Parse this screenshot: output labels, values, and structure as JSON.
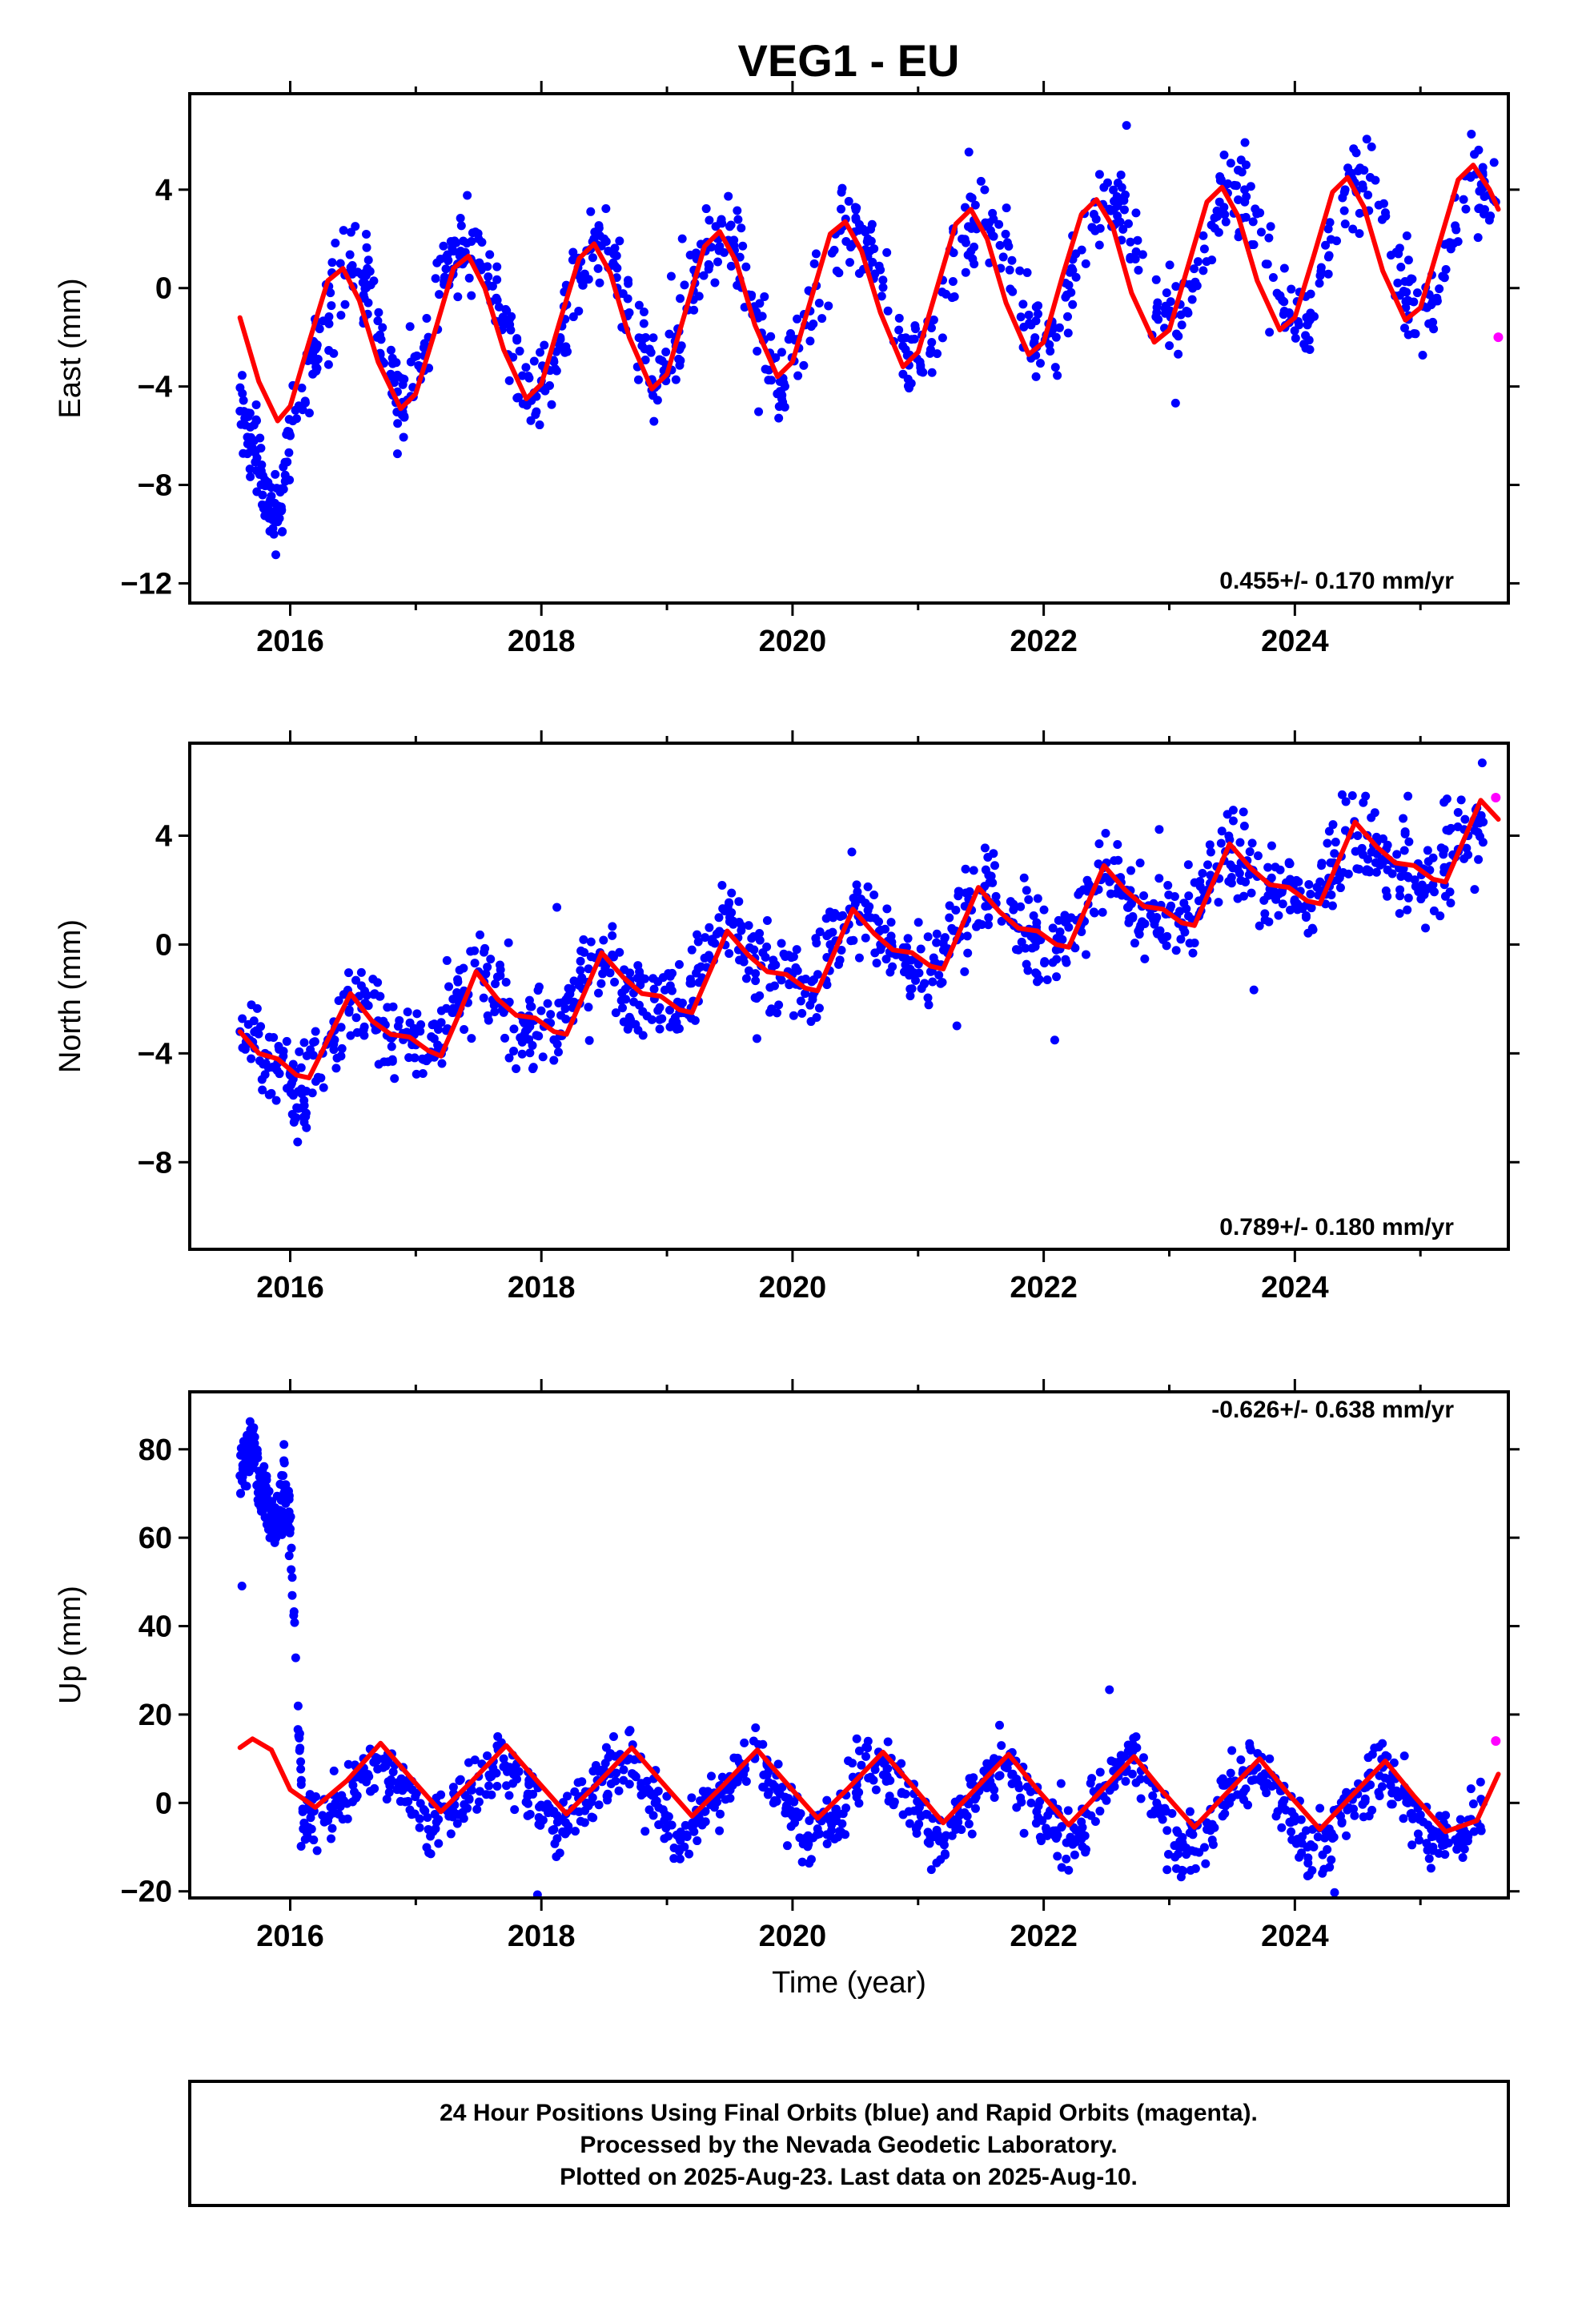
{
  "title": "VEG1 - EU",
  "footer": {
    "line1": "24 Hour Positions Using Final Orbits (blue) and Rapid Orbits (magenta).",
    "line2": "Processed by the Nevada Geodetic Laboratory.",
    "line3": "Plotted on 2025-Aug-23. Last data on 2025-Aug-10."
  },
  "colors": {
    "final": "#0000ff",
    "rapid": "#ff00ff",
    "model": "#ff0000",
    "frame": "#000000"
  },
  "chart_data": [
    {
      "type": "scatter",
      "ylabel": "East (mm)",
      "xlabel": "",
      "rate": "0.455+/- 0.170 mm/yr",
      "xlim": [
        2015.2,
        2025.7
      ],
      "ylim": [
        -12.8,
        7.9
      ],
      "yticks": [
        4,
        0,
        -4,
        -8,
        -12
      ],
      "ytick_labels": [
        "4",
        "0",
        "−4",
        "−8",
        "−12"
      ],
      "xticks": [
        2016,
        2018,
        2020,
        2022,
        2024
      ],
      "xtick_labels": [
        "2016",
        "2018",
        "2020",
        "2022",
        "2024"
      ],
      "grid": false,
      "final_series": {
        "name": "Final Orbits",
        "x": [
          2015.6,
          2015.7,
          2015.8,
          2015.9,
          2016.0,
          2016.2,
          2016.4,
          2016.6,
          2016.8,
          2016.9,
          2017.1,
          2017.3,
          2017.5,
          2017.7,
          2017.9,
          2018.1,
          2018.3,
          2018.5,
          2018.7,
          2018.9,
          2019.1,
          2019.3,
          2019.5,
          2019.7,
          2019.9,
          2020.1,
          2020.4,
          2020.6,
          2020.9,
          2021.1,
          2021.4,
          2021.6,
          2021.9,
          2022.1,
          2022.4,
          2022.6,
          2022.9,
          2023.1,
          2023.4,
          2023.6,
          2023.9,
          2024.1,
          2024.4,
          2024.6,
          2024.9,
          2025.1,
          2025.4,
          2025.6
        ],
        "y": [
          -5.0,
          -6.5,
          -7.8,
          -9.5,
          -6.0,
          -2.5,
          1.0,
          0.5,
          -3.5,
          -4.8,
          -2.0,
          1.5,
          2.0,
          -1.5,
          -4.5,
          -3.0,
          0.5,
          2.0,
          -1.0,
          -4.0,
          -2.5,
          1.5,
          2.5,
          -1.0,
          -4.2,
          -1.5,
          2.5,
          2.0,
          -2.5,
          -2.5,
          2.5,
          2.8,
          -1.5,
          -2.0,
          3.0,
          3.5,
          -1.0,
          -1.5,
          3.5,
          4.0,
          -0.5,
          -1.5,
          4.0,
          4.5,
          -0.5,
          -0.5,
          4.5,
          3.5
        ]
      },
      "rapid_series": {
        "name": "Rapid Orbits",
        "x": [
          2025.62
        ],
        "y": [
          -2.0
        ]
      },
      "model": {
        "x": [
          2015.6,
          2015.75,
          2015.9,
          2016.0,
          2016.15,
          2016.3,
          2016.42,
          2016.55,
          2016.7,
          2016.88,
          2017.0,
          2017.15,
          2017.3,
          2017.42,
          2017.55,
          2017.7,
          2017.88,
          2018.0,
          2018.15,
          2018.3,
          2018.42,
          2018.55,
          2018.7,
          2018.88,
          2019.0,
          2019.15,
          2019.3,
          2019.42,
          2019.55,
          2019.7,
          2019.88,
          2020.0,
          2020.15,
          2020.3,
          2020.42,
          2020.55,
          2020.7,
          2020.88,
          2021.0,
          2021.15,
          2021.3,
          2021.42,
          2021.55,
          2021.7,
          2021.88,
          2022.0,
          2022.15,
          2022.3,
          2022.42,
          2022.55,
          2022.7,
          2022.88,
          2023.0,
          2023.15,
          2023.3,
          2023.42,
          2023.55,
          2023.7,
          2023.88,
          2024.0,
          2024.15,
          2024.3,
          2024.42,
          2024.55,
          2024.7,
          2024.88,
          2025.0,
          2025.15,
          2025.3,
          2025.42,
          2025.55,
          2025.62
        ],
        "y": [
          -1.2,
          -3.8,
          -5.4,
          -4.8,
          -2.2,
          0.3,
          0.8,
          -0.5,
          -3.0,
          -4.9,
          -4.3,
          -1.8,
          0.8,
          1.3,
          0.0,
          -2.5,
          -4.5,
          -3.9,
          -1.3,
          1.2,
          1.8,
          0.6,
          -2.0,
          -4.1,
          -3.5,
          -0.9,
          1.7,
          2.3,
          1.1,
          -1.5,
          -3.6,
          -3.0,
          -0.4,
          2.2,
          2.7,
          1.5,
          -1.0,
          -3.2,
          -2.6,
          0.0,
          2.6,
          3.2,
          2.0,
          -0.6,
          -2.7,
          -2.2,
          0.5,
          3.0,
          3.6,
          2.5,
          -0.2,
          -2.2,
          -1.7,
          0.9,
          3.5,
          4.1,
          2.9,
          0.3,
          -1.7,
          -1.2,
          1.3,
          3.9,
          4.5,
          3.3,
          0.7,
          -1.3,
          -0.8,
          1.8,
          4.4,
          5.0,
          4.0,
          3.2
        ]
      }
    },
    {
      "type": "scatter",
      "ylabel": "North (mm)",
      "xlabel": "",
      "rate": "0.789+/- 0.180 mm/yr",
      "xlim": [
        2015.2,
        2025.7
      ],
      "ylim": [
        -11.2,
        7.4
      ],
      "yticks": [
        4,
        0,
        -4,
        -8
      ],
      "ytick_labels": [
        "4",
        "0",
        "−4",
        "−8"
      ],
      "xticks": [
        2016,
        2018,
        2020,
        2022,
        2024
      ],
      "xtick_labels": [
        "2016",
        "2018",
        "2020",
        "2022",
        "2024"
      ],
      "grid": false,
      "final_series": {
        "name": "Final Orbits",
        "x": [
          2015.6,
          2015.8,
          2016.0,
          2016.1,
          2016.3,
          2016.5,
          2016.7,
          2016.9,
          2017.1,
          2017.3,
          2017.5,
          2017.7,
          2017.9,
          2018.1,
          2018.3,
          2018.5,
          2018.7,
          2018.9,
          2019.1,
          2019.3,
          2019.5,
          2019.7,
          2019.9,
          2020.1,
          2020.3,
          2020.5,
          2020.7,
          2020.9,
          2021.1,
          2021.3,
          2021.5,
          2021.7,
          2021.9,
          2022.1,
          2022.3,
          2022.5,
          2022.7,
          2022.9,
          2023.1,
          2023.3,
          2023.5,
          2023.7,
          2023.9,
          2024.1,
          2024.3,
          2024.5,
          2024.7,
          2024.9,
          2025.1,
          2025.3,
          2025.5
        ],
        "y": [
          -3.2,
          -4.0,
          -4.8,
          -6.0,
          -3.5,
          -2.0,
          -2.8,
          -3.5,
          -4.2,
          -2.5,
          -1.0,
          -2.5,
          -3.0,
          -3.5,
          -1.5,
          -0.5,
          -1.5,
          -2.0,
          -2.5,
          -0.5,
          1.0,
          -0.5,
          -1.2,
          -1.8,
          0.0,
          1.5,
          0.0,
          -0.5,
          -1.0,
          0.5,
          2.0,
          1.0,
          0.3,
          -0.2,
          1.0,
          3.0,
          1.5,
          1.0,
          0.8,
          2.0,
          3.5,
          2.5,
          2.0,
          1.5,
          3.0,
          4.0,
          3.0,
          2.5,
          2.2,
          3.5,
          4.5
        ]
      },
      "rapid_series": {
        "name": "Rapid Orbits",
        "x": [
          2025.6
        ],
        "y": [
          5.4
        ]
      },
      "model": {
        "x": [
          2015.6,
          2015.75,
          2015.9,
          2016.05,
          2016.15,
          2016.3,
          2016.48,
          2016.65,
          2016.8,
          2016.95,
          2017.1,
          2017.2,
          2017.35,
          2017.48,
          2017.65,
          2017.8,
          2017.95,
          2018.1,
          2018.2,
          2018.35,
          2018.48,
          2018.65,
          2018.8,
          2018.95,
          2019.1,
          2019.2,
          2019.35,
          2019.48,
          2019.65,
          2019.8,
          2019.95,
          2020.1,
          2020.2,
          2020.35,
          2020.48,
          2020.65,
          2020.8,
          2020.95,
          2021.1,
          2021.2,
          2021.35,
          2021.48,
          2021.65,
          2021.8,
          2021.95,
          2022.1,
          2022.2,
          2022.35,
          2022.48,
          2022.65,
          2022.8,
          2022.95,
          2023.1,
          2023.2,
          2023.35,
          2023.48,
          2023.65,
          2023.8,
          2023.95,
          2024.1,
          2024.2,
          2024.35,
          2024.48,
          2024.65,
          2024.8,
          2024.95,
          2025.1,
          2025.2,
          2025.35,
          2025.48,
          2025.62
        ],
        "y": [
          -3.2,
          -4.0,
          -4.2,
          -4.8,
          -4.9,
          -3.5,
          -1.8,
          -2.8,
          -3.3,
          -3.4,
          -3.9,
          -4.1,
          -2.5,
          -1.0,
          -2.0,
          -2.6,
          -2.7,
          -3.2,
          -3.3,
          -1.7,
          -0.3,
          -1.2,
          -1.8,
          -1.9,
          -2.4,
          -2.5,
          -0.9,
          0.5,
          -0.4,
          -1.0,
          -1.1,
          -1.6,
          -1.7,
          -0.1,
          1.3,
          0.4,
          -0.2,
          -0.3,
          -0.8,
          -0.9,
          0.7,
          2.1,
          1.2,
          0.6,
          0.5,
          0.0,
          -0.1,
          1.5,
          2.9,
          2.0,
          1.4,
          1.3,
          0.8,
          0.7,
          2.3,
          3.7,
          2.8,
          2.2,
          2.1,
          1.6,
          1.5,
          3.1,
          4.5,
          3.6,
          3.0,
          2.9,
          2.4,
          2.3,
          3.9,
          5.3,
          4.6
        ]
      }
    },
    {
      "type": "scatter",
      "ylabel": "Up (mm)",
      "xlabel": "Time (year)",
      "rate": "-0.626+/- 0.638 mm/yr",
      "xlim": [
        2015.2,
        2025.7
      ],
      "ylim": [
        -21.5,
        93.0
      ],
      "yticks": [
        80,
        60,
        40,
        20,
        0,
        -20
      ],
      "ytick_labels": [
        "80",
        "60",
        "40",
        "20",
        "0",
        "−20"
      ],
      "xticks": [
        2016,
        2018,
        2020,
        2022,
        2024
      ],
      "xtick_labels": [
        "2016",
        "2018",
        "2020",
        "2022",
        "2024"
      ],
      "grid": false,
      "final_series": {
        "name": "Final Orbits",
        "x": [
          2015.6,
          2015.65,
          2015.7,
          2015.75,
          2015.8,
          2015.85,
          2015.9,
          2015.95,
          2016.0,
          2016.1,
          2016.3,
          2016.5,
          2016.7,
          2016.9,
          2017.1,
          2017.3,
          2017.5,
          2017.7,
          2017.9,
          2018.1,
          2018.3,
          2018.5,
          2018.7,
          2018.9,
          2019.1,
          2019.3,
          2019.5,
          2019.7,
          2019.9,
          2020.1,
          2020.3,
          2020.5,
          2020.7,
          2020.9,
          2021.1,
          2021.3,
          2021.5,
          2021.7,
          2021.9,
          2022.1,
          2022.3,
          2022.5,
          2022.7,
          2022.9,
          2023.1,
          2023.3,
          2023.5,
          2023.7,
          2023.9,
          2024.1,
          2024.3,
          2024.5,
          2024.7,
          2024.9,
          2025.1,
          2025.3,
          2025.5
        ],
        "y": [
          74,
          78,
          82,
          72,
          68,
          66,
          64,
          70,
          62,
          -2,
          -4,
          4,
          10,
          4,
          -6,
          -2,
          6,
          10,
          2,
          -6,
          -2,
          6,
          10,
          2,
          -8,
          -2,
          6,
          10,
          2,
          -8,
          -4,
          4,
          10,
          2,
          -8,
          -6,
          4,
          8,
          0,
          -8,
          -6,
          4,
          10,
          0,
          -10,
          -6,
          4,
          8,
          0,
          -10,
          -8,
          2,
          8,
          0,
          -10,
          -8,
          0
        ]
      },
      "rapid_series": {
        "name": "Rapid Orbits",
        "x": [
          2025.6
        ],
        "y": [
          14.0
        ]
      },
      "model": {
        "x": [
          2015.6,
          2015.7,
          2015.85,
          2016.0,
          2016.2,
          2016.45,
          2016.72,
          2016.95,
          2017.2,
          2017.45,
          2017.72,
          2017.95,
          2018.2,
          2018.45,
          2018.72,
          2018.95,
          2019.2,
          2019.45,
          2019.72,
          2019.95,
          2020.2,
          2020.45,
          2020.72,
          2020.95,
          2021.2,
          2021.45,
          2021.72,
          2021.95,
          2022.2,
          2022.45,
          2022.72,
          2022.95,
          2023.2,
          2023.45,
          2023.72,
          2023.95,
          2024.2,
          2024.45,
          2024.72,
          2024.95,
          2025.2,
          2025.45,
          2025.62
        ],
        "y": [
          12.5,
          14.5,
          12.0,
          3.0,
          -1.0,
          5.0,
          13.5,
          6.0,
          -2.0,
          5.0,
          13.0,
          5.5,
          -2.5,
          4.5,
          12.5,
          5.0,
          -3.0,
          4.0,
          12.0,
          4.5,
          -3.5,
          3.5,
          11.5,
          4.0,
          -4.5,
          3.0,
          11.0,
          3.0,
          -5.0,
          2.5,
          10.5,
          2.5,
          -5.5,
          2.0,
          10.0,
          2.0,
          -6.0,
          1.5,
          9.5,
          1.5,
          -6.5,
          -4.0,
          6.5
        ]
      }
    }
  ]
}
